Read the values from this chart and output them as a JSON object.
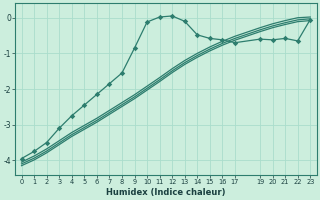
{
  "xlabel": "Humidex (Indice chaleur)",
  "bg_color": "#cceedd",
  "grid_color": "#aaddcc",
  "line_color": "#2d7d6e",
  "xlim": [
    -0.5,
    23.5
  ],
  "ylim": [
    -4.4,
    0.4
  ],
  "xticks": [
    0,
    1,
    2,
    3,
    4,
    5,
    6,
    7,
    8,
    9,
    10,
    11,
    12,
    13,
    14,
    15,
    16,
    17,
    19,
    20,
    21,
    22,
    23
  ],
  "xtick_labels": [
    "0",
    "1",
    "2",
    "3",
    "4",
    "5",
    "6",
    "7",
    "8",
    "9",
    "10",
    "11",
    "12",
    "13",
    "14",
    "15",
    "16",
    "17",
    "19",
    "20",
    "21",
    "22",
    "23"
  ],
  "yticks": [
    0,
    -1,
    -2,
    -3,
    -4
  ],
  "curve1_x": [
    0,
    1,
    2,
    3,
    4,
    5,
    6,
    7,
    8,
    9,
    10,
    11,
    12,
    13,
    14,
    15,
    16,
    17,
    19,
    20,
    21,
    22,
    23
  ],
  "curve1_y": [
    -3.95,
    -3.75,
    -3.5,
    -3.1,
    -2.75,
    -2.45,
    -2.15,
    -1.85,
    -1.55,
    -0.85,
    -0.12,
    0.02,
    0.05,
    -0.1,
    -0.48,
    -0.58,
    -0.62,
    -0.7,
    -0.6,
    -0.62,
    -0.58,
    -0.65,
    -0.05
  ],
  "curve2_x": [
    0,
    1,
    2,
    3,
    4,
    5,
    6,
    7,
    8,
    9,
    10,
    11,
    12,
    13,
    14,
    15,
    16,
    17,
    19,
    20,
    21,
    22,
    23
  ],
  "curve2_y": [
    -4.05,
    -3.88,
    -3.68,
    -3.45,
    -3.22,
    -3.02,
    -2.82,
    -2.6,
    -2.38,
    -2.16,
    -1.92,
    -1.68,
    -1.43,
    -1.2,
    -1.0,
    -0.82,
    -0.66,
    -0.52,
    -0.28,
    -0.17,
    -0.08,
    0.0,
    0.02
  ],
  "curve3_x": [
    0,
    1,
    2,
    3,
    4,
    5,
    6,
    7,
    8,
    9,
    10,
    11,
    12,
    13,
    14,
    15,
    16,
    17,
    19,
    20,
    21,
    22,
    23
  ],
  "curve3_y": [
    -4.1,
    -3.94,
    -3.74,
    -3.51,
    -3.28,
    -3.08,
    -2.88,
    -2.66,
    -2.44,
    -2.22,
    -1.98,
    -1.74,
    -1.49,
    -1.26,
    -1.06,
    -0.88,
    -0.72,
    -0.58,
    -0.34,
    -0.23,
    -0.14,
    -0.06,
    -0.03
  ],
  "curve4_x": [
    0,
    1,
    2,
    3,
    4,
    5,
    6,
    7,
    8,
    9,
    10,
    11,
    12,
    13,
    14,
    15,
    16,
    17,
    19,
    20,
    21,
    22,
    23
  ],
  "curve4_y": [
    -4.15,
    -3.99,
    -3.79,
    -3.56,
    -3.33,
    -3.13,
    -2.93,
    -2.71,
    -2.49,
    -2.27,
    -2.03,
    -1.79,
    -1.54,
    -1.31,
    -1.11,
    -0.93,
    -0.77,
    -0.63,
    -0.39,
    -0.28,
    -0.19,
    -0.11,
    -0.08
  ]
}
